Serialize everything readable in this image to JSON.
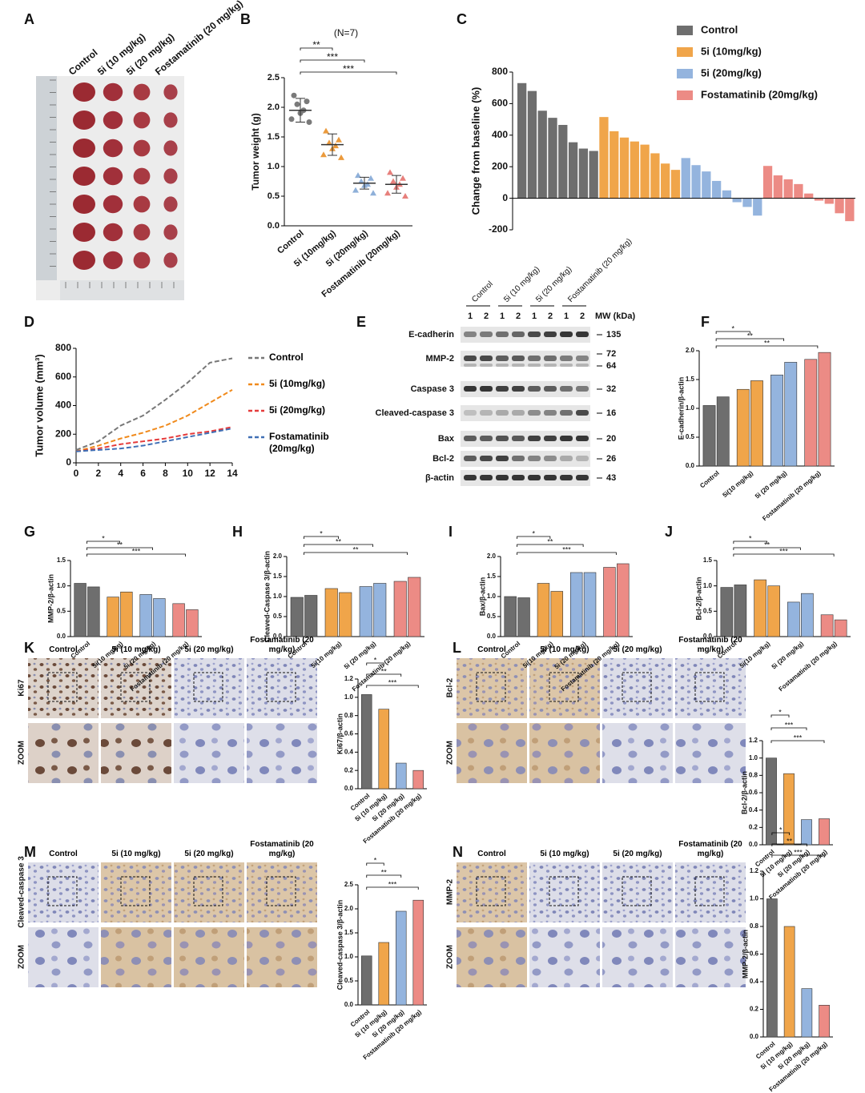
{
  "panel_labels": [
    "A",
    "B",
    "C",
    "D",
    "E",
    "F",
    "G",
    "H",
    "I",
    "J",
    "K",
    "L",
    "M",
    "N"
  ],
  "photo_a": {
    "columns": [
      "Control",
      "5i (10 mg/kg)",
      "5i (20 mg/kg)",
      "Fostamatinib (20 mg/kg)"
    ]
  },
  "blot_e": {
    "groups": [
      "Control",
      "5i (10 mg/kg)",
      "5i (20 mg/kg)",
      "Fostamatinib (20 mg/kg)"
    ],
    "lanes": [
      "1",
      "2",
      "1",
      "2",
      "1",
      "2",
      "1",
      "2"
    ],
    "mw_header": "MW (kDa)",
    "rows": [
      {
        "label": "E-cadherin",
        "mw": [
          "135"
        ]
      },
      {
        "label": "MMP-2",
        "mw": [
          "72",
          "64"
        ]
      },
      {
        "label": "Caspase 3",
        "mw": [
          "32"
        ]
      },
      {
        "label": "Cleaved-caspase 3",
        "mw": [
          "16"
        ]
      },
      {
        "label": "Bax",
        "mw": [
          "20"
        ]
      },
      {
        "label": "Bcl-2",
        "mw": [
          "26"
        ]
      },
      {
        "label": "β-actin",
        "mw": [
          "43"
        ]
      }
    ]
  },
  "ihc": [
    {
      "columns": [
        "Control",
        "5i (10 mg/kg)",
        "5i (20 mg/kg)",
        "Fostamatinib (20 mg/kg)"
      ],
      "rows": [
        "Ki67",
        "ZOOM"
      ]
    },
    {
      "columns": [
        "Control",
        "5i (10 mg/kg)",
        "5i (20 mg/kg)",
        "Fostamatinib (20 mg/kg)"
      ],
      "rows": [
        "Bcl-2",
        "ZOOM"
      ]
    },
    {
      "columns": [
        "Control",
        "5i (10 mg/kg)",
        "5i (20 mg/kg)",
        "Fostamatinib (20 mg/kg)"
      ],
      "rows": [
        "Cleaved-caspase 3",
        "ZOOM"
      ]
    },
    {
      "columns": [
        "Control",
        "5i (10 mg/kg)",
        "5i (20 mg/kg)",
        "Fostamatinib (20 mg/kg)"
      ],
      "rows": [
        "MMP-2",
        "ZOOM"
      ]
    }
  ],
  "chart_data": [
    {
      "type": "dot",
      "subtitle": "(N=7)",
      "ylabel": "Tumor weight (g)",
      "categories": [
        "Control",
        "5i (10mg/kg)",
        "5i (20mg/kg)",
        "Fostamatinib (20mg/kg)"
      ],
      "colors": [
        "#7a7a7a",
        "#eb9a3c",
        "#8fb0d9",
        "#e7807c"
      ],
      "values": [
        1.95,
        1.37,
        0.72,
        0.7
      ],
      "errors": [
        0.2,
        0.18,
        0.1,
        0.15
      ],
      "points": [
        [
          2.2,
          2.1,
          2.05,
          1.95,
          1.9,
          1.8,
          1.75
        ],
        [
          1.6,
          1.45,
          1.4,
          1.35,
          1.3,
          1.2,
          1.15
        ],
        [
          0.85,
          0.8,
          0.75,
          0.7,
          0.68,
          0.6,
          0.55
        ],
        [
          0.9,
          0.8,
          0.75,
          0.7,
          0.65,
          0.55,
          0.5
        ]
      ],
      "ylim": [
        0,
        2.5
      ],
      "yticks": [
        {
          "value": 0,
          "label": "0.0"
        },
        0.5,
        {
          "value": 1,
          "label": "1.0"
        },
        1.5,
        {
          "value": 2,
          "label": "2.0"
        },
        2.5
      ],
      "significance": [
        "**",
        "***",
        "***"
      ]
    },
    {
      "type": "waterfall",
      "ylabel": "Change from baseline (%)",
      "series": [
        {
          "name": "Control",
          "color": "#6e6e6e",
          "values": [
            730,
            680,
            555,
            510,
            465,
            355,
            315,
            300
          ]
        },
        {
          "name": "5i (10mg/kg)",
          "color": "#f0a54a",
          "values": [
            515,
            425,
            385,
            360,
            340,
            285,
            220,
            180
          ]
        },
        {
          "name": "5i (20mg/kg)",
          "color": "#94b4de",
          "values": [
            255,
            210,
            170,
            110,
            50,
            -25,
            -55,
            -110
          ]
        },
        {
          "name": "Fostamatinib (20mg/kg)",
          "color": "#ec8b85",
          "values": [
            205,
            145,
            120,
            90,
            30,
            -15,
            -35,
            -95,
            -145
          ]
        }
      ],
      "ylim": [
        -200,
        800
      ],
      "yticks": [
        -200,
        0,
        200,
        400,
        600,
        800
      ]
    },
    {
      "type": "line",
      "ylabel": "Tumor volume (mm³)",
      "x": [
        0,
        2,
        4,
        6,
        8,
        10,
        12,
        14
      ],
      "xlim": [
        0,
        14
      ],
      "xticks": [
        0,
        2,
        4,
        6,
        8,
        10,
        12,
        14
      ],
      "ylim": [
        0,
        800
      ],
      "yticks": [
        0,
        200,
        400,
        600,
        800
      ],
      "series": [
        {
          "name": "Control",
          "color": "#777777",
          "values": [
            90,
            150,
            260,
            330,
            440,
            560,
            700,
            730
          ]
        },
        {
          "name": "5i (10mg/kg)",
          "color": "#f08a1c",
          "values": [
            80,
            120,
            170,
            210,
            260,
            330,
            420,
            510
          ]
        },
        {
          "name": "5i (20mg/kg)",
          "color": "#e53b3b",
          "values": [
            80,
            100,
            130,
            150,
            170,
            200,
            220,
            250
          ]
        },
        {
          "name": "Fostamatinib (20mg/kg)",
          "color": "#3f6fb5",
          "values": [
            80,
            90,
            100,
            120,
            150,
            180,
            210,
            240
          ]
        }
      ]
    },
    {
      "type": "bar",
      "ylabel": "E-cadherin/β-actin",
      "categories": [
        "Control",
        "5i(10 mg/kg)",
        "5i  (20 mg/kg)",
        "Fostamatinib (20 mg/kg)"
      ],
      "colors": [
        "#6e6e6e",
        "#f0a54a",
        "#94b4de",
        "#ec8b85"
      ],
      "values": [
        [
          1.05,
          1.2
        ],
        [
          1.33,
          1.48
        ],
        [
          1.58,
          1.8
        ],
        [
          1.85,
          1.97
        ]
      ],
      "ylim": [
        0,
        2
      ],
      "yticks": [
        {
          "value": 0,
          "label": "0.0"
        },
        0.5,
        {
          "value": 1,
          "label": "1.0"
        },
        1.5,
        {
          "value": 2,
          "label": "2.0"
        }
      ],
      "significance": [
        "*",
        "**",
        "**"
      ]
    },
    {
      "type": "bar",
      "ylabel": "MMP-2/β-actin",
      "categories": [
        "Control",
        "5i(10 mg/kg)",
        "5i  (20 mg/kg)",
        "Fostamatinib (20 mg/kg)"
      ],
      "colors": [
        "#6e6e6e",
        "#f0a54a",
        "#94b4de",
        "#ec8b85"
      ],
      "values": [
        [
          1.05,
          0.98
        ],
        [
          0.78,
          0.88
        ],
        [
          0.83,
          0.75
        ],
        [
          0.65,
          0.53
        ]
      ],
      "ylim": [
        0,
        1.5
      ],
      "yticks": [
        {
          "value": 0,
          "label": "0.0"
        },
        0.5,
        {
          "value": 1,
          "label": "1.0"
        },
        1.5
      ],
      "significance": [
        "*",
        "**",
        "***"
      ]
    },
    {
      "type": "bar",
      "ylabel": "Cleaved-Caspase 3/β-actin",
      "categories": [
        "Control",
        "5i(10 mg/kg)",
        "5i  (20 mg/kg)",
        "Fostamatinib (20 mg/kg)"
      ],
      "colors": [
        "#6e6e6e",
        "#f0a54a",
        "#94b4de",
        "#ec8b85"
      ],
      "values": [
        [
          0.98,
          1.03
        ],
        [
          1.2,
          1.1
        ],
        [
          1.25,
          1.33
        ],
        [
          1.38,
          1.48
        ]
      ],
      "ylim": [
        0,
        2
      ],
      "yticks": [
        {
          "value": 0,
          "label": "0.0"
        },
        0.5,
        {
          "value": 1,
          "label": "1.0"
        },
        1.5,
        {
          "value": 2,
          "label": "2.0"
        }
      ],
      "significance": [
        "*",
        "**",
        "**"
      ]
    },
    {
      "type": "bar",
      "ylabel": "Bax/β-actin",
      "categories": [
        "Control",
        "5i(10 mg/kg)",
        "5i  (20 mg/kg)",
        "Fostamatinib (20 mg/kg)"
      ],
      "colors": [
        "#6e6e6e",
        "#f0a54a",
        "#94b4de",
        "#ec8b85"
      ],
      "values": [
        [
          1.0,
          0.97
        ],
        [
          1.33,
          1.13
        ],
        [
          1.6,
          1.6
        ],
        [
          1.73,
          1.82
        ]
      ],
      "ylim": [
        0,
        2
      ],
      "yticks": [
        {
          "value": 0,
          "label": "0.0"
        },
        0.5,
        {
          "value": 1,
          "label": "1.0"
        },
        1.5,
        {
          "value": 2,
          "label": "2.0"
        }
      ],
      "significance": [
        "*",
        "**",
        "***"
      ]
    },
    {
      "type": "bar",
      "ylabel": "Bcl-2/β-actin",
      "categories": [
        "Control",
        "5i(10 mg/kg)",
        "5i  (20 mg/kg)",
        "Fostamatinib (20 mg/kg)"
      ],
      "colors": [
        "#6e6e6e",
        "#f0a54a",
        "#94b4de",
        "#ec8b85"
      ],
      "values": [
        [
          0.97,
          1.02
        ],
        [
          1.12,
          1.0
        ],
        [
          0.68,
          0.85
        ],
        [
          0.43,
          0.33
        ]
      ],
      "ylim": [
        0,
        1.5
      ],
      "yticks": [
        {
          "value": 0,
          "label": "0.0"
        },
        0.5,
        {
          "value": 1,
          "label": "1.0"
        },
        1.5
      ],
      "significance": [
        "*",
        "**",
        "***"
      ]
    },
    {
      "type": "bar",
      "ylabel": "Ki67/β-actin",
      "categories": [
        "Control",
        "5i (10 mg/kg)",
        "5i (20 mg/kg)",
        "Fostamatinib (20 mg/kg)"
      ],
      "colors": [
        "#6e6e6e",
        "#f0a54a",
        "#94b4de",
        "#ec8b85"
      ],
      "values": [
        1.03,
        0.87,
        0.28,
        0.2
      ],
      "ylim": [
        0,
        1.2
      ],
      "yticks": [
        {
          "value": 0,
          "label": "0.0"
        },
        0.2,
        0.4,
        0.6,
        0.8,
        {
          "value": 1,
          "label": "1.0"
        },
        1.2
      ],
      "significance": [
        "*",
        "**",
        "***"
      ]
    },
    {
      "type": "bar",
      "ylabel": "Bcl-2/β-actin",
      "categories": [
        "Control",
        "5i (10 mg/kg)",
        "5i (20 mg/kg)",
        "Fostamatinib (20 mg/kg)"
      ],
      "colors": [
        "#6e6e6e",
        "#f0a54a",
        "#94b4de",
        "#ec8b85"
      ],
      "values": [
        1.0,
        0.82,
        0.29,
        0.3
      ],
      "ylim": [
        0,
        1.2
      ],
      "yticks": [
        {
          "value": 0,
          "label": "0.0"
        },
        0.2,
        0.4,
        0.6,
        0.8,
        {
          "value": 1,
          "label": "1.0"
        },
        1.2
      ],
      "significance": [
        "*",
        "***",
        "***"
      ]
    },
    {
      "type": "bar",
      "ylabel": "Cleaved-caspase 3/β-actin",
      "categories": [
        "Control",
        "5i (10 mg/kg)",
        "5i (20 mg/kg)",
        "Fostamatinib (20 mg/kg)"
      ],
      "colors": [
        "#6e6e6e",
        "#f0a54a",
        "#94b4de",
        "#ec8b85"
      ],
      "values": [
        1.02,
        1.3,
        1.95,
        2.18
      ],
      "ylim": [
        0,
        2.5
      ],
      "yticks": [
        {
          "value": 0,
          "label": "0.0"
        },
        0.5,
        {
          "value": 1,
          "label": "1.0"
        },
        1.5,
        {
          "value": 2,
          "label": "2.0"
        },
        2.5
      ],
      "significance": [
        "*",
        "**",
        "***"
      ]
    },
    {
      "type": "bar",
      "ylabel": "MMP-2/β-actin",
      "categories": [
        "Control",
        "5i (10 mg/kg)",
        "5i (20 mg/kg)",
        "Fostamatinib (20 mg/kg)"
      ],
      "colors": [
        "#6e6e6e",
        "#f0a54a",
        "#94b4de",
        "#ec8b85"
      ],
      "values": [
        1.0,
        0.8,
        0.35,
        0.23
      ],
      "ylim": [
        0,
        1.2
      ],
      "yticks": [
        {
          "value": 0,
          "label": "0.0"
        },
        0.2,
        0.4,
        0.6,
        0.8,
        {
          "value": 1,
          "label": "1.0"
        },
        1.2
      ],
      "significance": [
        "*",
        "**",
        "***"
      ]
    }
  ]
}
